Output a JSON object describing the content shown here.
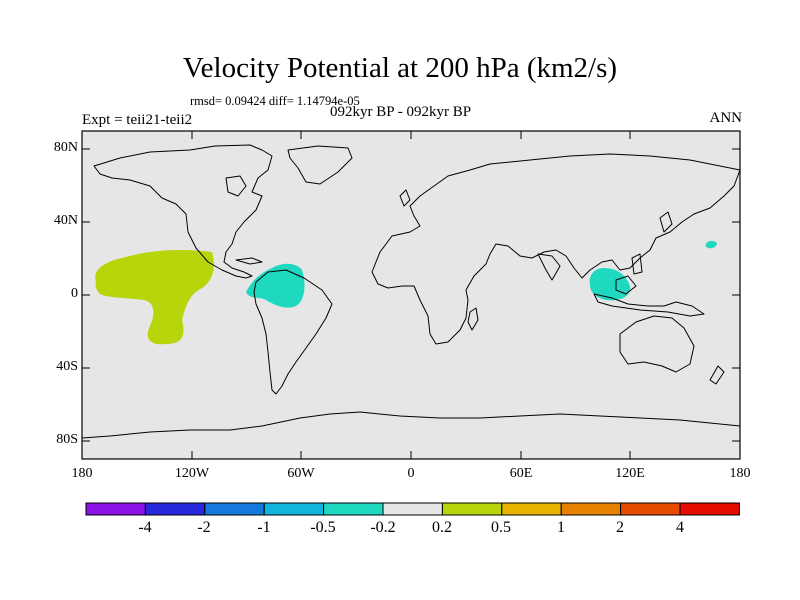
{
  "title": "Velocity Potential at 200 hPa (km2/s)",
  "stats_line": "rmsd= 0.09424 diff= 1.14794e-05",
  "period": "092kyr BP - 092kyr BP",
  "experiment": "Expt = teii21-teii2",
  "season": "ANN",
  "map": {
    "background": "#e6e6e6",
    "lat_ticks": [
      "80N",
      "40N",
      "0",
      "40S",
      "80S"
    ],
    "lon_ticks": [
      "180",
      "120W",
      "60W",
      "0",
      "60E",
      "120E",
      "180"
    ],
    "anomaly_regions": [
      {
        "name": "central-pacific-positive",
        "color": "#b8d40a",
        "level": "0.2 to 0.5"
      },
      {
        "name": "tropical-south-america-negative",
        "color": "#1fd8c0",
        "level": "-0.5 to -0.2"
      },
      {
        "name": "maritime-continent-negative",
        "color": "#1fd8c0",
        "level": "-0.5 to -0.2"
      },
      {
        "name": "west-pacific-negative",
        "color": "#1fd8c0",
        "level": "-0.5 to -0.2"
      }
    ]
  },
  "colorbar": {
    "colors": [
      "#8a14e6",
      "#2828dc",
      "#1478dc",
      "#10b4dc",
      "#1fd8c0",
      "#e6e6e6",
      "#b8d40a",
      "#e6b400",
      "#e68200",
      "#e64b00",
      "#e60a00"
    ],
    "labels": [
      "-4",
      "-2",
      "-1",
      "-0.5",
      "-0.2",
      "0.2",
      "0.5",
      "1",
      "2",
      "4"
    ]
  }
}
